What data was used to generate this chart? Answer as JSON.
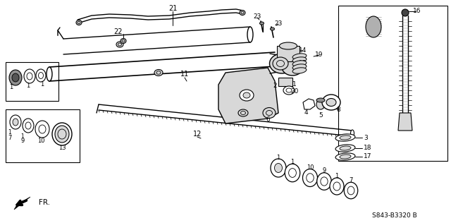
{
  "bg_color": "#ffffff",
  "line_color": "#000000",
  "diagram_code": "S843-B3320 B",
  "fr_label": "FR.",
  "gray_fill": "#b0b0b0",
  "light_gray": "#d8d8d8",
  "mid_gray": "#909090"
}
